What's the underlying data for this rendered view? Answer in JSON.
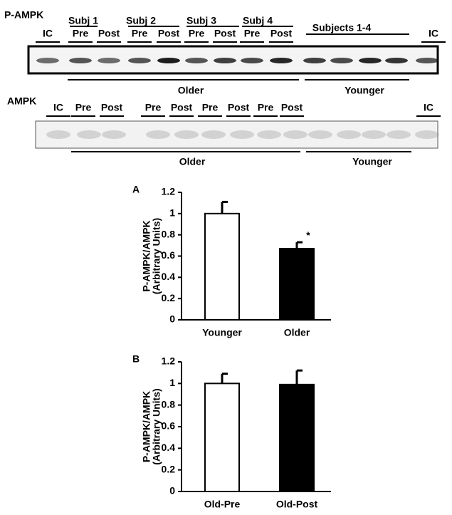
{
  "blots": [
    {
      "label": "P-AMPK",
      "groups": [
        "Subj 1",
        "Subj 2",
        "Subj 3",
        "Subj 4",
        "Subjects 1-4"
      ],
      "lanes": [
        "IC",
        "Pre",
        "Post",
        "Pre",
        "Post",
        "Pre",
        "Post",
        "Pre",
        "Post",
        "IC"
      ],
      "cohorts": [
        "Older",
        "Younger"
      ]
    },
    {
      "label": "AMPK",
      "lanes": [
        "IC",
        "Pre",
        "Post",
        "Pre",
        "Post",
        "Pre",
        "Post",
        "Pre",
        "Post",
        "IC"
      ],
      "cohorts": [
        "Older",
        "Younger"
      ]
    }
  ],
  "chart_data": [
    {
      "type": "bar",
      "panel": "A",
      "ylabel": [
        "P-AMPK/AMPK",
        "(Arbitrary Units)"
      ],
      "categories": [
        "Younger",
        "Older"
      ],
      "values": [
        1.0,
        0.67
      ],
      "errors": [
        0.11,
        0.06
      ],
      "colors": [
        "#ffffff",
        "#000000"
      ],
      "annotation": "*",
      "ylim": [
        0,
        1.2
      ],
      "yticks": [
        0,
        0.2,
        0.4,
        0.6,
        0.8,
        1,
        1.2
      ]
    },
    {
      "type": "bar",
      "panel": "B",
      "ylabel": [
        "P-AMPK/AMPK",
        "(Arbitrary Units)"
      ],
      "categories": [
        "Old-Pre",
        "Old-Post"
      ],
      "values": [
        1.0,
        0.99
      ],
      "errors": [
        0.09,
        0.13
      ],
      "colors": [
        "#ffffff",
        "#000000"
      ],
      "ylim": [
        0,
        1.2
      ],
      "yticks": [
        0,
        0.2,
        0.4,
        0.6,
        0.8,
        1,
        1.2
      ]
    }
  ]
}
